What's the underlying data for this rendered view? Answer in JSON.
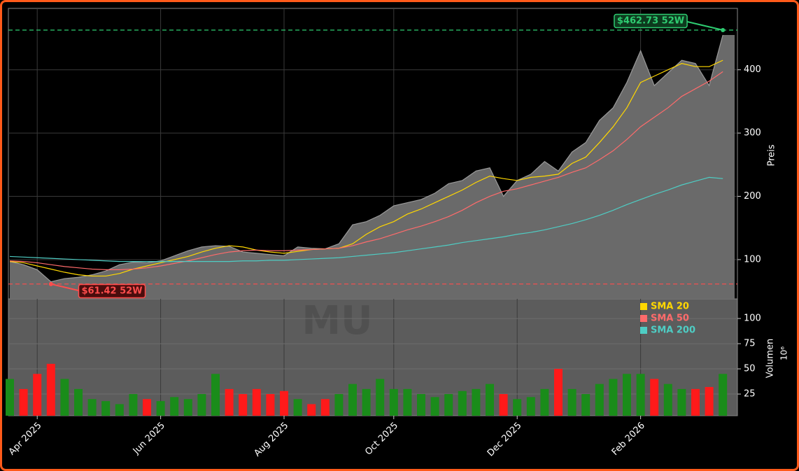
{
  "chart_data": {
    "type": "stock",
    "categories": [
      null,
      null,
      "Apr 2025",
      null,
      null,
      null,
      null,
      null,
      null,
      null,
      null,
      "Jun 2025",
      null,
      null,
      null,
      null,
      null,
      null,
      null,
      null,
      "Aug 2025",
      null,
      null,
      null,
      null,
      null,
      null,
      null,
      "Oct 2025",
      null,
      null,
      null,
      null,
      null,
      null,
      null,
      null,
      "Dec 2025",
      null,
      null,
      null,
      null,
      null,
      null,
      null,
      null,
      "Feb 2026",
      null,
      null,
      null,
      null,
      null,
      null
    ],
    "price": {
      "color": "#6a6a6a",
      "values": [
        97,
        92,
        84,
        65,
        70,
        72,
        76,
        82,
        92,
        96,
        95,
        98,
        106,
        114,
        120,
        122,
        121,
        112,
        110,
        108,
        106,
        120,
        118,
        117,
        125,
        155,
        160,
        170,
        185,
        190,
        195,
        205,
        220,
        225,
        240,
        245,
        200,
        225,
        235,
        255,
        240,
        270,
        285,
        320,
        340,
        380,
        430,
        375,
        395,
        415,
        410,
        375,
        455
      ]
    },
    "series": [
      {
        "name": "SMA 20",
        "color": "#ffd700",
        "values": [
          97,
          95,
          90,
          85,
          80,
          76,
          74,
          74,
          78,
          85,
          90,
          95,
          100,
          105,
          112,
          118,
          122,
          120,
          115,
          112,
          110,
          113,
          116,
          117,
          118,
          125,
          140,
          152,
          160,
          172,
          180,
          190,
          200,
          210,
          222,
          232,
          228,
          225,
          230,
          232,
          235,
          252,
          262,
          285,
          310,
          340,
          380,
          390,
          400,
          410,
          405,
          405,
          415
        ]
      },
      {
        "name": "SMA 50",
        "color": "#ff6b6b",
        "values": [
          98,
          97,
          95,
          92,
          89,
          87,
          85,
          84,
          84,
          85,
          87,
          90,
          94,
          98,
          103,
          108,
          112,
          114,
          115,
          114,
          114,
          115,
          116,
          117,
          118,
          122,
          128,
          133,
          140,
          147,
          153,
          160,
          168,
          178,
          190,
          200,
          208,
          212,
          218,
          224,
          230,
          238,
          245,
          258,
          272,
          290,
          310,
          325,
          340,
          358,
          370,
          382,
          397
        ]
      },
      {
        "name": "SMA 200",
        "color": "#4ecdc4",
        "values": [
          105,
          104,
          103,
          102,
          101,
          100,
          99,
          98,
          97,
          97,
          97,
          97,
          97,
          97,
          97,
          97,
          97,
          98,
          98,
          99,
          99,
          100,
          101,
          102,
          103,
          105,
          107,
          109,
          111,
          114,
          117,
          120,
          123,
          127,
          130,
          133,
          136,
          140,
          143,
          147,
          152,
          157,
          163,
          170,
          178,
          187,
          195,
          203,
          210,
          218,
          224,
          230,
          228
        ]
      }
    ],
    "ylim": [
      38,
      497
    ],
    "yticks": [
      100,
      200,
      300,
      400
    ],
    "ylabel": "Preis",
    "grid": true,
    "annotations": [
      {
        "text": "$462.73 52W",
        "value": 462.73,
        "color": "#2ecc71"
      },
      {
        "text": "$61.42 52W",
        "value": 61.42,
        "color": "#ff4d4d"
      }
    ],
    "watermark": "MU",
    "legend": "upper right",
    "volume": {
      "ylabel": "Volumen",
      "multiplier": "10⁶",
      "ylim": [
        3.5,
        119.5
      ],
      "yticks": [
        25,
        50,
        75,
        100
      ],
      "values": [
        40,
        30,
        45,
        55,
        40,
        30,
        20,
        18,
        15,
        25,
        20,
        18,
        22,
        20,
        25,
        45,
        30,
        25,
        30,
        25,
        28,
        20,
        15,
        20,
        25,
        35,
        30,
        40,
        30,
        30,
        25,
        22,
        25,
        28,
        30,
        35,
        25,
        20,
        22,
        30,
        50,
        30,
        25,
        35,
        40,
        45,
        45,
        40,
        35,
        30,
        30,
        32,
        45
      ],
      "colors": [
        "#1a8c1a",
        "#ff1a1a",
        "#ff1a1a",
        "#ff1a1a",
        "#1a8c1a",
        "#1a8c1a",
        "#1a8c1a",
        "#1a8c1a",
        "#1a8c1a",
        "#1a8c1a",
        "#ff1a1a",
        "#1a8c1a",
        "#1a8c1a",
        "#1a8c1a",
        "#1a8c1a",
        "#1a8c1a",
        "#ff1a1a",
        "#ff1a1a",
        "#ff1a1a",
        "#ff1a1a",
        "#ff1a1a",
        "#1a8c1a",
        "#ff1a1a",
        "#ff1a1a",
        "#1a8c1a",
        "#1a8c1a",
        "#1a8c1a",
        "#1a8c1a",
        "#1a8c1a",
        "#1a8c1a",
        "#1a8c1a",
        "#1a8c1a",
        "#1a8c1a",
        "#1a8c1a",
        "#1a8c1a",
        "#1a8c1a",
        "#ff1a1a",
        "#1a8c1a",
        "#1a8c1a",
        "#1a8c1a",
        "#ff1a1a",
        "#1a8c1a",
        "#1a8c1a",
        "#1a8c1a",
        "#1a8c1a",
        "#1a8c1a",
        "#1a8c1a",
        "#ff1a1a",
        "#1a8c1a",
        "#1a8c1a",
        "#ff1a1a",
        "#ff1a1a",
        "#1a8c1a"
      ]
    }
  }
}
